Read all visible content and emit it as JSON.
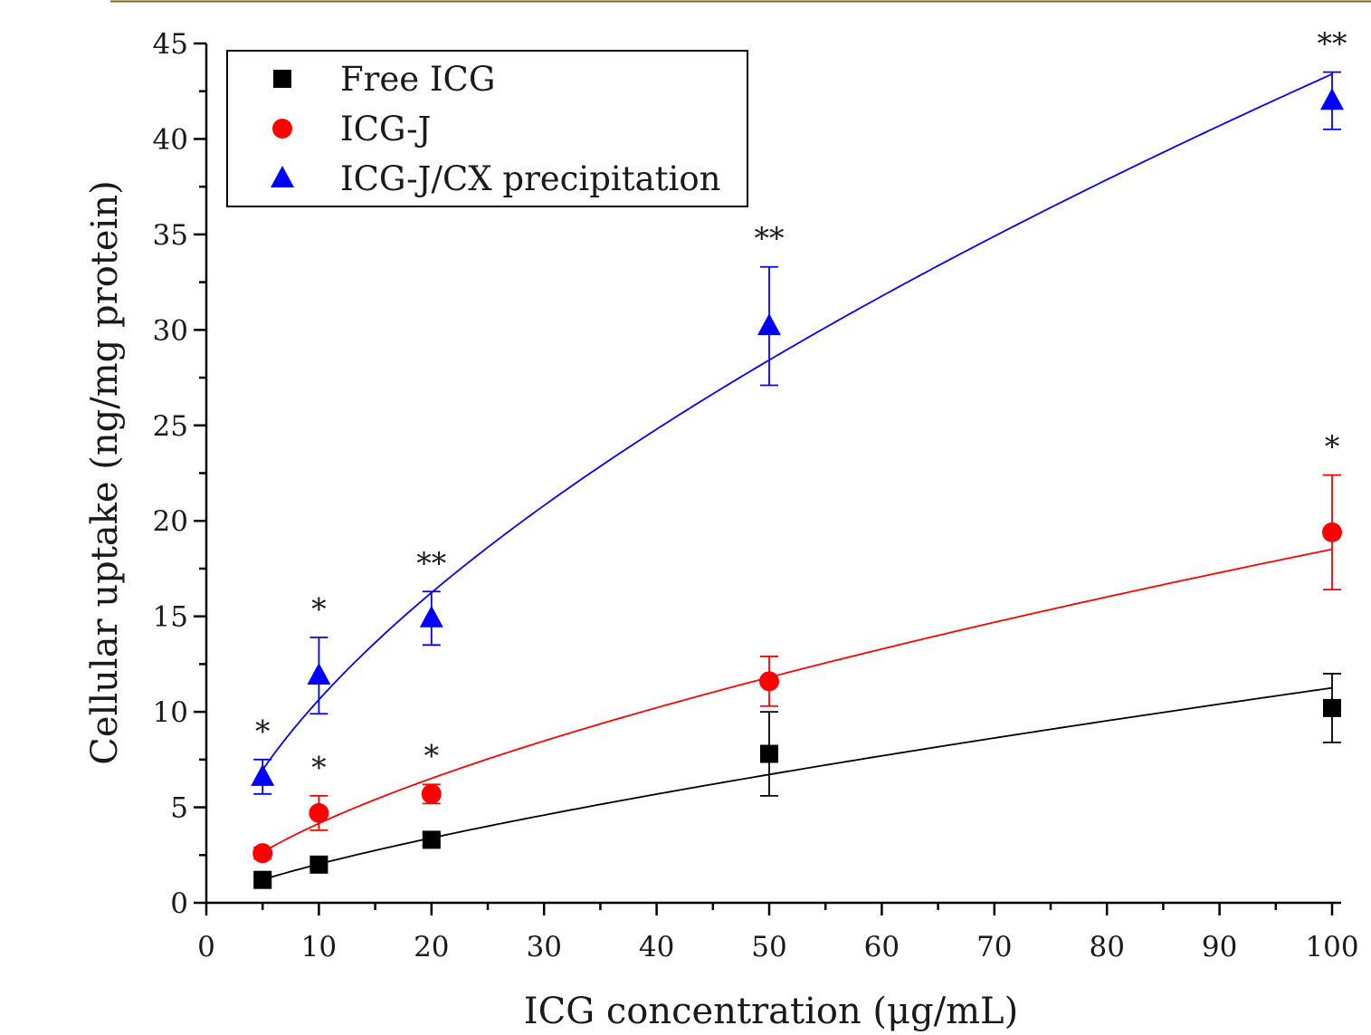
{
  "chart_data": {
    "type": "scatter",
    "title": "",
    "xlabel": "ICG concentration (μg/mL)",
    "ylabel": "Cellular uptake (ng/mg protein)",
    "xlim": [
      0,
      100
    ],
    "ylim": [
      0,
      45
    ],
    "x_ticks": [
      0,
      10,
      20,
      30,
      40,
      50,
      60,
      70,
      80,
      90,
      100
    ],
    "y_ticks": [
      0,
      5,
      10,
      15,
      20,
      25,
      30,
      35,
      40,
      45
    ],
    "x_minor_step": 5,
    "y_minor_step": 2.5,
    "grid": false,
    "legend_position": "top-left",
    "series": [
      {
        "name": "Free ICG",
        "marker": "square",
        "color": "#000000",
        "fit_curve": true,
        "x": [
          5,
          10,
          20,
          50,
          100
        ],
        "y": [
          1.2,
          2.0,
          3.3,
          7.8,
          10.2
        ],
        "error": [
          0.2,
          0.2,
          0.3,
          2.2,
          1.8
        ],
        "annotations": [
          "",
          "",
          "",
          "",
          ""
        ]
      },
      {
        "name": "ICG-J",
        "marker": "circle",
        "color": "#ff0000",
        "fit_curve": true,
        "x": [
          5,
          10,
          20,
          50,
          100
        ],
        "y": [
          2.6,
          4.7,
          5.7,
          11.6,
          19.4
        ],
        "error": [
          0.3,
          0.9,
          0.5,
          1.3,
          3.0
        ],
        "annotations": [
          "",
          "*",
          "*",
          "",
          "*"
        ]
      },
      {
        "name": "ICG-J/CX precipitation",
        "marker": "triangle",
        "color": "#0000ff",
        "fit_curve": true,
        "x": [
          5,
          10,
          20,
          50,
          100
        ],
        "y": [
          6.6,
          11.9,
          14.9,
          30.2,
          42.0
        ],
        "error": [
          0.9,
          2.0,
          1.4,
          3.1,
          1.5
        ],
        "annotations": [
          "*",
          "*",
          "**",
          "**",
          "**"
        ]
      }
    ]
  }
}
